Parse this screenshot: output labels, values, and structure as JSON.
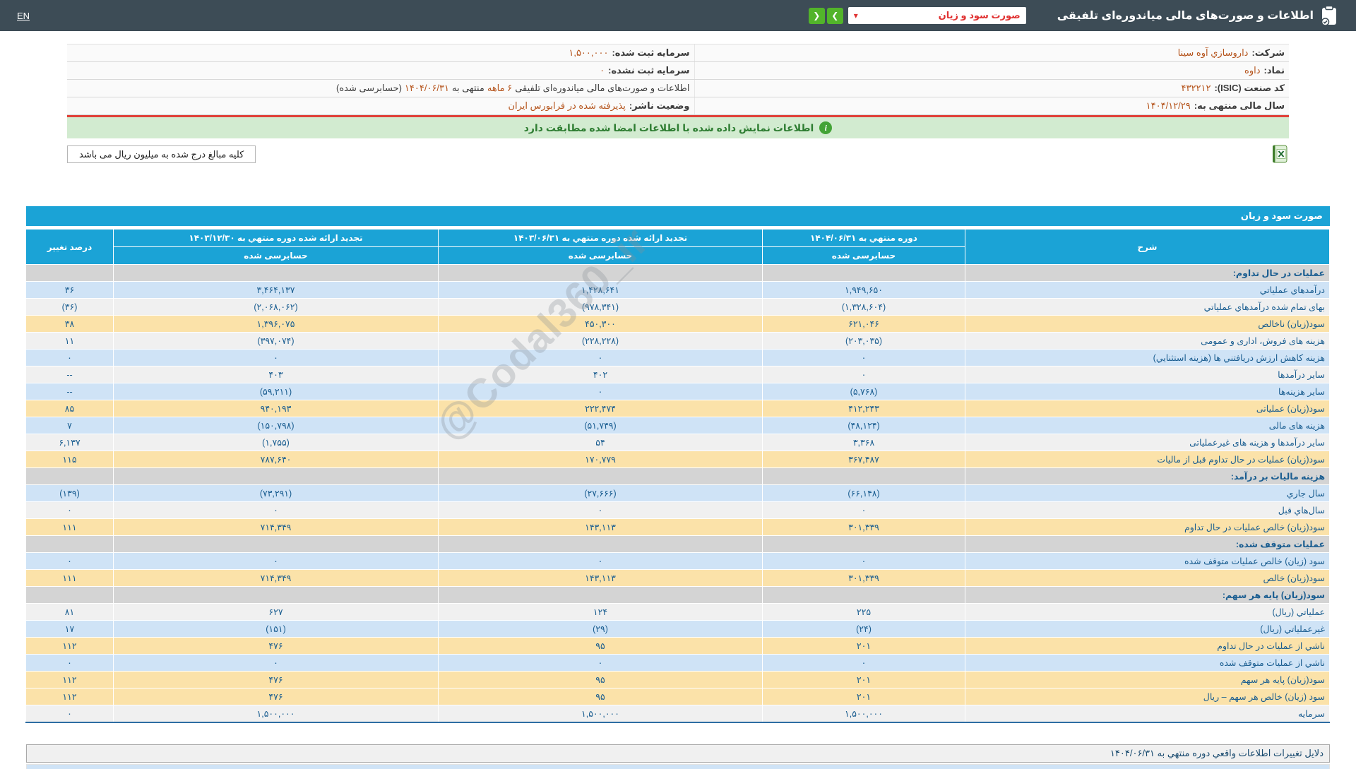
{
  "topbar": {
    "en_label": "EN",
    "title": "اطلاعات و صورت‌های مالی میاندوره‌ای تلفیقی",
    "dropdown_value": "صورت سود و زیان",
    "caret_glyph": "▾",
    "nav_forward_glyph": "❯",
    "nav_back_glyph": "❮"
  },
  "company": {
    "rows": [
      {
        "r_label": "شرکت:",
        "r_value": "داروسازي آوه سينا",
        "l_label": "سرمایه ثبت شده:",
        "l_value": "۱,۵۰۰,۰۰۰"
      },
      {
        "r_label": "نماد:",
        "r_value": "داوه",
        "l_label": "سرمایه ثبت نشده:",
        "l_value": "۰"
      },
      {
        "r_label": "کد صنعت (ISIC):",
        "r_value": "۴۳۲۲۱۲",
        "l_parts": {
          "p1": "اطلاعات و صورت‌های مالی میاندوره‌ای تلفیقی",
          "p2": "۶ ماهه",
          "p3": "منتهی به",
          "p4": "۱۴۰۴/۰۶/۳۱",
          "p5": "(حسابرسی شده)"
        }
      },
      {
        "r_label": "سال مالی منتهی به:",
        "r_value": "۱۴۰۴/۱۲/۲۹",
        "l_label": "وضعیت ناشر:",
        "l_value": "پذیرفته شده در فرابورس ایران"
      }
    ]
  },
  "banner": {
    "icon_glyph": "i",
    "text": "اطلاعات نمایش داده شده با اطلاعات امضا شده مطابقت دارد"
  },
  "note": {
    "text": "کلیه مبالغ درج شده به میلیون ریال می باشد"
  },
  "watermark": {
    "text": "@Codal360_ir"
  },
  "table": {
    "title": "صورت سود و زیان",
    "columns": {
      "desc": "شرح",
      "col1": "دوره منتهي به ۱۴۰۴/۰۶/۳۱",
      "col2": "تجدید ارائه شده دوره منتهي به ۱۴۰۳/۰۶/۳۱",
      "col3": "تجدید ارائه شده دوره منتهي به ۱۴۰۳/۱۲/۳۰",
      "pct": "درصد تغییر",
      "audited": "حسابرسی شده"
    },
    "rows": [
      {
        "type": "section",
        "label": "عملیات در حال تداوم:"
      },
      {
        "type": "data",
        "bg": "blue",
        "label": "درآمدهاي عملياتي",
        "v1": "۱,۹۴۹,۶۵۰",
        "v2": "۱,۴۲۸,۶۴۱",
        "v3": "۳,۴۶۴,۱۳۷",
        "pct": "۳۶"
      },
      {
        "type": "data",
        "bg": "white",
        "label": "بهای تمام شده درآمدهاي عملياتي",
        "v1": "(۱,۳۲۸,۶۰۴)",
        "v2": "(۹۷۸,۳۴۱)",
        "v3": "(۲,۰۶۸,۰۶۲)",
        "pct": "(۳۶)"
      },
      {
        "type": "data",
        "bg": "yellow",
        "label": "سود(زیان) ناخالص",
        "v1": "۶۲۱,۰۴۶",
        "v2": "۴۵۰,۳۰۰",
        "v3": "۱,۳۹۶,۰۷۵",
        "pct": "۳۸"
      },
      {
        "type": "data",
        "bg": "white",
        "label": "هزینه های فروش، اداری و عمومی",
        "v1": "(۲۰۳,۰۳۵)",
        "v2": "(۲۲۸,۲۲۸)",
        "v3": "(۳۹۷,۰۷۴)",
        "pct": "۱۱"
      },
      {
        "type": "data",
        "bg": "blue",
        "label": "هزینه کاهش ارزش دریافتني ها (هزینه استثنایي)",
        "v1": "۰",
        "v2": "۰",
        "v3": "۰",
        "pct": "۰"
      },
      {
        "type": "data",
        "bg": "white",
        "label": "سایر درآمدها",
        "v1": "۰",
        "v2": "۴۰۲",
        "v3": "۴۰۳",
        "pct": "--"
      },
      {
        "type": "data",
        "bg": "blue",
        "label": "سایر هزینه‌ها",
        "v1": "(۵,۷۶۸)",
        "v2": "۰",
        "v3": "(۵۹,۲۱۱)",
        "pct": "--"
      },
      {
        "type": "data",
        "bg": "yellow",
        "label": "سود(زیان) عملیاتی",
        "v1": "۴۱۲,۲۴۳",
        "v2": "۲۲۲,۴۷۴",
        "v3": "۹۴۰,۱۹۳",
        "pct": "۸۵"
      },
      {
        "type": "data",
        "bg": "blue",
        "label": "هزینه های مالی",
        "v1": "(۴۸,۱۲۴)",
        "v2": "(۵۱,۷۴۹)",
        "v3": "(۱۵۰,۷۹۸)",
        "pct": "۷"
      },
      {
        "type": "data",
        "bg": "white",
        "label": "سایر درآمدها و هزینه های غیرعملیاتی",
        "v1": "۳,۳۶۸",
        "v2": "۵۴",
        "v3": "(۱,۷۵۵)",
        "pct": "۶,۱۳۷"
      },
      {
        "type": "data",
        "bg": "yellow",
        "label": "سود(زیان) عملیات در حال تداوم قبل از مالیات",
        "v1": "۳۶۷,۴۸۷",
        "v2": "۱۷۰,۷۷۹",
        "v3": "۷۸۷,۶۴۰",
        "pct": "۱۱۵"
      },
      {
        "type": "section",
        "label": "هزینه مالیات بر درآمد:"
      },
      {
        "type": "data",
        "bg": "blue",
        "label": "سال جاري",
        "v1": "(۶۶,۱۴۸)",
        "v2": "(۲۷,۶۶۶)",
        "v3": "(۷۳,۲۹۱)",
        "pct": "(۱۳۹)"
      },
      {
        "type": "data",
        "bg": "white",
        "label": "سال‌هاي قبل",
        "v1": "۰",
        "v2": "۰",
        "v3": "۰",
        "pct": "۰"
      },
      {
        "type": "data",
        "bg": "yellow",
        "label": "سود(زیان) خالص عملیات در حال تداوم",
        "v1": "۳۰۱,۳۳۹",
        "v2": "۱۴۳,۱۱۳",
        "v3": "۷۱۴,۳۴۹",
        "pct": "۱۱۱"
      },
      {
        "type": "section",
        "label": "عملیات متوقف شده:"
      },
      {
        "type": "data",
        "bg": "blue",
        "label": "سود (زیان) خالص عملیات متوقف شده",
        "v1": "۰",
        "v2": "۰",
        "v3": "۰",
        "pct": "۰"
      },
      {
        "type": "data",
        "bg": "yellow",
        "label": "سود(زیان) خالص",
        "v1": "۳۰۱,۳۳۹",
        "v2": "۱۴۳,۱۱۳",
        "v3": "۷۱۴,۳۴۹",
        "pct": "۱۱۱"
      },
      {
        "type": "section",
        "label": "سود(زیان) پایه هر سهم:"
      },
      {
        "type": "data",
        "bg": "white",
        "label": "عملياتي (ريال)",
        "v1": "۲۲۵",
        "v2": "۱۲۴",
        "v3": "۶۲۷",
        "pct": "۸۱"
      },
      {
        "type": "data",
        "bg": "blue",
        "label": "غیرعملیاتي (ريال)",
        "v1": "(۲۴)",
        "v2": "(۲۹)",
        "v3": "(۱۵۱)",
        "pct": "۱۷"
      },
      {
        "type": "data",
        "bg": "yellow",
        "label": "ناشي از عملیات در حال تداوم",
        "v1": "۲۰۱",
        "v2": "۹۵",
        "v3": "۴۷۶",
        "pct": "۱۱۲"
      },
      {
        "type": "data",
        "bg": "blue",
        "label": "ناشي از عملیات متوقف شده",
        "v1": "۰",
        "v2": "۰",
        "v3": "۰",
        "pct": "۰"
      },
      {
        "type": "data",
        "bg": "yellow",
        "label": "سود(زیان) پایه هر سهم",
        "v1": "۲۰۱",
        "v2": "۹۵",
        "v3": "۴۷۶",
        "pct": "۱۱۲"
      },
      {
        "type": "data",
        "bg": "yellow",
        "label": "سود (زیان) خالص هر سهم – ریال",
        "v1": "۲۰۱",
        "v2": "۹۵",
        "v3": "۴۷۶",
        "pct": "۱۱۲"
      },
      {
        "type": "data",
        "bg": "white",
        "label": "سرمایه",
        "v1": "۱,۵۰۰,۰۰۰",
        "v2": "۱,۵۰۰,۰۰۰",
        "v3": "۱,۵۰۰,۰۰۰",
        "pct": "۰"
      }
    ]
  },
  "footer": {
    "reasons_title": "دلایل تغییرات اطلاعات واقعي دوره منتهي به ۱۴۰۴/۰۶/۳۱"
  }
}
